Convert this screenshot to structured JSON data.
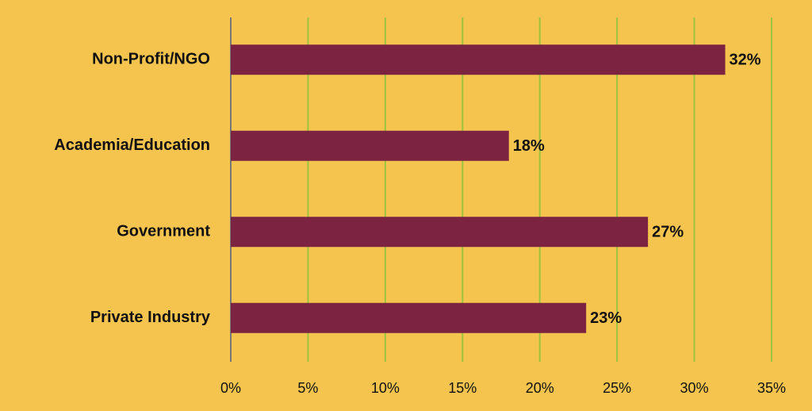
{
  "chart_data": {
    "type": "bar",
    "orientation": "horizontal",
    "categories": [
      "Non-Profit/NGO",
      "Academia/Education",
      "Government",
      "Private Industry"
    ],
    "values": [
      32,
      18,
      27,
      23
    ],
    "value_labels": [
      "32%",
      "18%",
      "27%",
      "23%"
    ],
    "color": "#7b2340",
    "xlim": [
      0,
      35
    ],
    "xticks": [
      {
        "value": 0,
        "label": "0%"
      },
      {
        "value": 5,
        "label": "5%"
      },
      {
        "value": 10,
        "label": "10%"
      },
      {
        "value": 15,
        "label": "15%"
      },
      {
        "value": 20,
        "label": "20%"
      },
      {
        "value": 25,
        "label": "25%"
      },
      {
        "value": 30,
        "label": "30%"
      },
      {
        "value": 35,
        "label": "35%"
      }
    ],
    "grid": true,
    "grid_color": "#9bc53d",
    "background": "#f4c44f"
  }
}
